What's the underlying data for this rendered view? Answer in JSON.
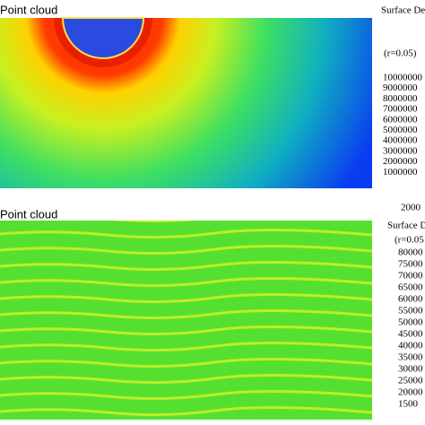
{
  "top_panel": {
    "label": "Point cloud",
    "legend_title": "Surface De",
    "legend_subtitle": "(r=0.05)",
    "legend_ticks": [
      10000000,
      9000000,
      8000000,
      7000000,
      6000000,
      5000000,
      4000000,
      3000000,
      2000000,
      1000000
    ],
    "legend_bottom": 2000
  },
  "bottom_panel": {
    "label": "Point cloud",
    "legend_title": "Surface D",
    "legend_subtitle": "(r=0.05",
    "legend_ticks": [
      80000,
      75000,
      70000,
      65000,
      60000,
      55000,
      50000,
      45000,
      40000,
      35000,
      30000,
      25000,
      20000,
      1500
    ]
  }
}
